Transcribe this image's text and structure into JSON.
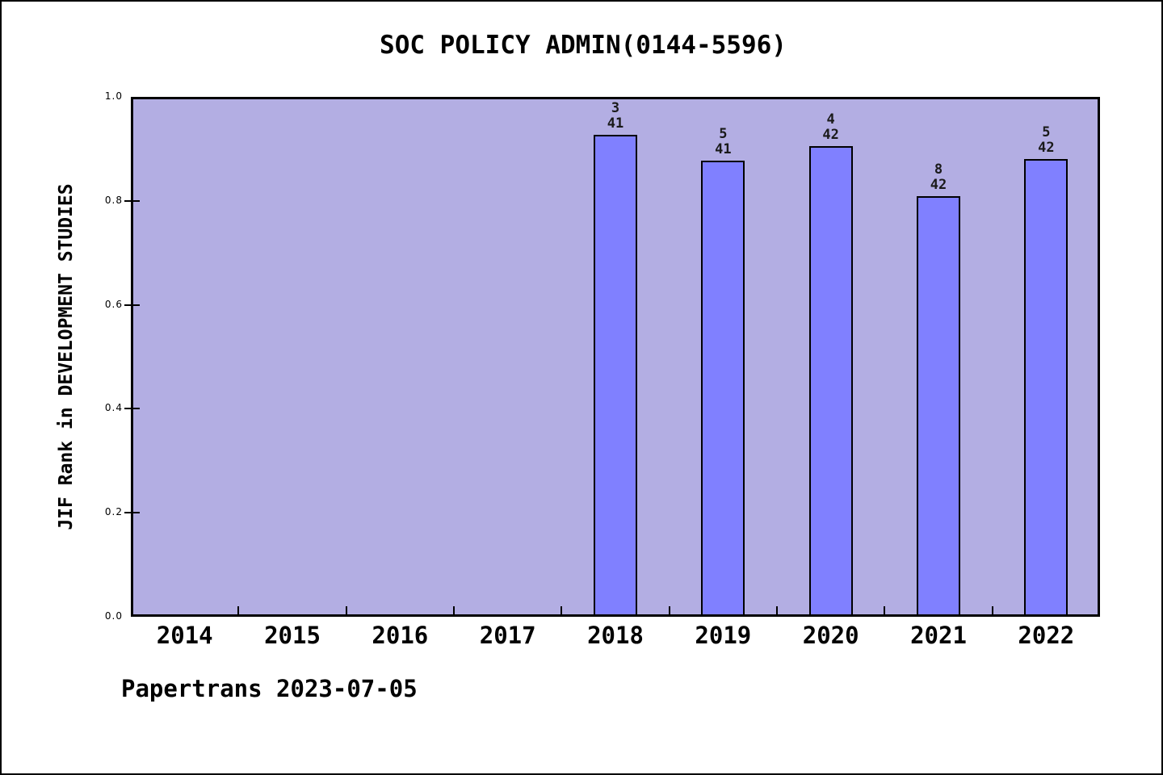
{
  "chart_data": {
    "type": "bar",
    "title": "SOC POLICY ADMIN(0144-5596)",
    "xlabel": "",
    "ylabel": "JIF Rank in DEVELOPMENT STUDIES",
    "ylim": [
      0.0,
      1.0
    ],
    "yticks": [
      "0.0",
      "0.2",
      "0.4",
      "0.6",
      "0.8",
      "1.0"
    ],
    "grid": false,
    "legend": false,
    "categories": [
      "2014",
      "2015",
      "2016",
      "2017",
      "2018",
      "2019",
      "2020",
      "2021",
      "2022"
    ],
    "bars": [
      {
        "year": "2018",
        "rank": "3",
        "total": "41",
        "value": 0.9268
      },
      {
        "year": "2019",
        "rank": "5",
        "total": "41",
        "value": 0.878
      },
      {
        "year": "2020",
        "rank": "4",
        "total": "42",
        "value": 0.9048
      },
      {
        "year": "2021",
        "rank": "8",
        "total": "42",
        "value": 0.8095
      },
      {
        "year": "2022",
        "rank": "5",
        "total": "42",
        "value": 0.881
      }
    ],
    "colors": {
      "plot_background": "#b3aee3",
      "bar_fill": "#8080ff",
      "bar_border": "#000000",
      "text": "#000000"
    }
  },
  "footer": {
    "text": "Papertrans 2023-07-05"
  }
}
